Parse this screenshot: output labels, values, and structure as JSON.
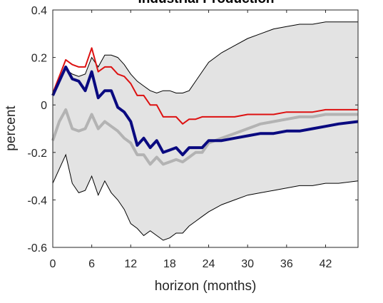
{
  "chart_data": {
    "type": "line",
    "title": "Industrial Production",
    "xlabel": "horizon (months)",
    "ylabel": "percent",
    "xlim": [
      0,
      47
    ],
    "ylim": [
      -0.6,
      0.4
    ],
    "grid": false,
    "x_ticks": [
      0,
      6,
      12,
      18,
      24,
      30,
      36,
      42
    ],
    "y_ticks": [
      -0.6,
      -0.4,
      -0.2,
      0,
      0.2,
      0.4
    ],
    "x_tick_labels": [
      "0",
      "6",
      "12",
      "18",
      "24",
      "30",
      "36",
      "42"
    ],
    "y_tick_labels": [
      "-0.6",
      "-0.4",
      "-0.2",
      "0",
      "0.2",
      "0.4"
    ],
    "band": {
      "color": "#e3e3e3",
      "edge_color": "#000000",
      "x": [
        0,
        1,
        2,
        3,
        4,
        5,
        6,
        7,
        8,
        9,
        10,
        11,
        12,
        13,
        14,
        15,
        16,
        17,
        18,
        19,
        20,
        21,
        22,
        23,
        24,
        26,
        28,
        30,
        32,
        34,
        36,
        38,
        40,
        42,
        44,
        47
      ],
      "upper": [
        0.04,
        0.1,
        0.15,
        0.13,
        0.12,
        0.13,
        0.2,
        0.16,
        0.21,
        0.21,
        0.2,
        0.17,
        0.13,
        0.1,
        0.08,
        0.06,
        0.05,
        0.06,
        0.06,
        0.05,
        0.05,
        0.06,
        0.1,
        0.14,
        0.18,
        0.22,
        0.25,
        0.28,
        0.3,
        0.32,
        0.33,
        0.34,
        0.34,
        0.35,
        0.35,
        0.35
      ],
      "lower": [
        -0.33,
        -0.27,
        -0.21,
        -0.33,
        -0.37,
        -0.36,
        -0.3,
        -0.38,
        -0.32,
        -0.37,
        -0.4,
        -0.44,
        -0.5,
        -0.52,
        -0.55,
        -0.53,
        -0.55,
        -0.57,
        -0.56,
        -0.54,
        -0.54,
        -0.51,
        -0.49,
        -0.47,
        -0.45,
        -0.42,
        -0.4,
        -0.38,
        -0.37,
        -0.36,
        -0.35,
        -0.34,
        -0.34,
        -0.33,
        -0.33,
        -0.32
      ]
    },
    "series": [
      {
        "color": "#dd1111",
        "width": 2,
        "x": [
          0,
          1,
          2,
          3,
          4,
          5,
          6,
          7,
          8,
          9,
          10,
          11,
          12,
          13,
          14,
          15,
          16,
          17,
          18,
          19,
          20,
          21,
          22,
          23,
          24,
          26,
          28,
          30,
          32,
          34,
          36,
          38,
          40,
          42,
          44,
          47
        ],
        "values": [
          0.05,
          0.12,
          0.19,
          0.17,
          0.16,
          0.16,
          0.24,
          0.14,
          0.16,
          0.16,
          0.13,
          0.12,
          0.09,
          0.04,
          0.04,
          0.0,
          0.0,
          -0.05,
          -0.05,
          -0.05,
          -0.08,
          -0.06,
          -0.06,
          -0.05,
          -0.05,
          -0.05,
          -0.05,
          -0.04,
          -0.04,
          -0.04,
          -0.03,
          -0.03,
          -0.03,
          -0.02,
          -0.02,
          -0.02
        ]
      },
      {
        "color": "#0a0a80",
        "width": 4,
        "x": [
          0,
          1,
          2,
          3,
          4,
          5,
          6,
          7,
          8,
          9,
          10,
          11,
          12,
          13,
          14,
          15,
          16,
          17,
          18,
          19,
          20,
          21,
          22,
          23,
          24,
          26,
          28,
          30,
          32,
          34,
          36,
          38,
          40,
          42,
          44,
          47
        ],
        "values": [
          0.04,
          0.1,
          0.16,
          0.11,
          0.1,
          0.06,
          0.14,
          0.03,
          0.06,
          0.06,
          -0.01,
          -0.03,
          -0.07,
          -0.17,
          -0.14,
          -0.18,
          -0.15,
          -0.2,
          -0.19,
          -0.18,
          -0.21,
          -0.18,
          -0.18,
          -0.18,
          -0.15,
          -0.15,
          -0.14,
          -0.13,
          -0.12,
          -0.12,
          -0.11,
          -0.11,
          -0.1,
          -0.09,
          -0.08,
          -0.07
        ]
      },
      {
        "color": "#b3b3b3",
        "width": 4,
        "x": [
          0,
          1,
          2,
          3,
          4,
          5,
          6,
          7,
          8,
          9,
          10,
          11,
          12,
          13,
          14,
          15,
          16,
          17,
          18,
          19,
          20,
          21,
          22,
          23,
          24,
          26,
          28,
          30,
          32,
          34,
          36,
          38,
          40,
          42,
          44,
          47
        ],
        "values": [
          -0.15,
          -0.07,
          -0.02,
          -0.1,
          -0.11,
          -0.1,
          -0.04,
          -0.1,
          -0.07,
          -0.09,
          -0.11,
          -0.14,
          -0.16,
          -0.21,
          -0.21,
          -0.25,
          -0.22,
          -0.25,
          -0.24,
          -0.23,
          -0.24,
          -0.22,
          -0.2,
          -0.2,
          -0.16,
          -0.14,
          -0.12,
          -0.1,
          -0.08,
          -0.07,
          -0.06,
          -0.05,
          -0.05,
          -0.04,
          -0.04,
          -0.04
        ]
      }
    ]
  }
}
